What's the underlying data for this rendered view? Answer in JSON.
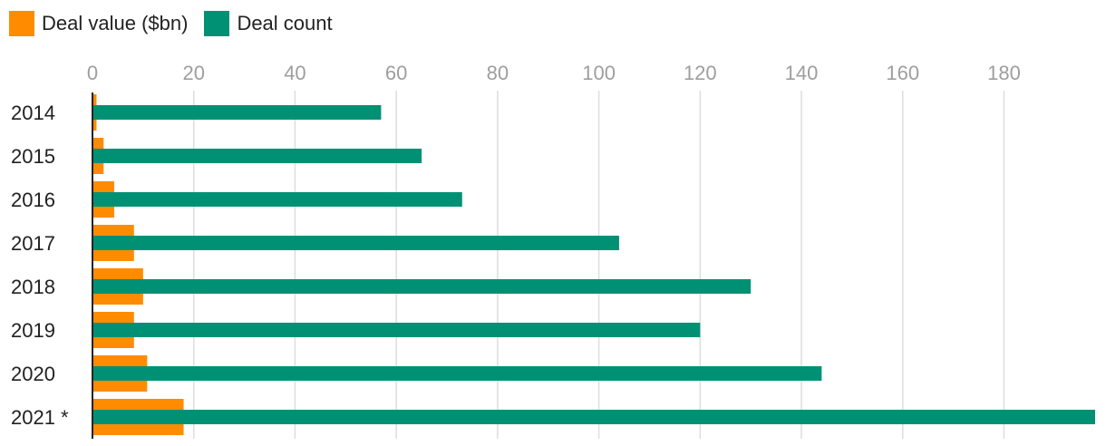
{
  "colors": {
    "value": "#ff8c00",
    "count": "#009175",
    "grid": "#dddddd",
    "axis": "#222222"
  },
  "chart_data": {
    "type": "bar",
    "orientation": "horizontal",
    "categories": [
      "2014",
      "2015",
      "2016",
      "2017",
      "2018",
      "2019",
      "2020",
      "2021 *"
    ],
    "series": [
      {
        "name": "Deal value ($bn)",
        "values": [
          0.8,
          2.2,
          4.3,
          8.2,
          10.0,
          8.2,
          10.8,
          18.0
        ]
      },
      {
        "name": "Deal count",
        "values": [
          57,
          65,
          73,
          104,
          130,
          120,
          144,
          198
        ]
      }
    ],
    "xlim": [
      0,
      198
    ],
    "xticks": [
      0,
      20,
      40,
      60,
      80,
      100,
      120,
      140,
      160,
      180
    ],
    "grid": true,
    "legend": "top-left"
  }
}
